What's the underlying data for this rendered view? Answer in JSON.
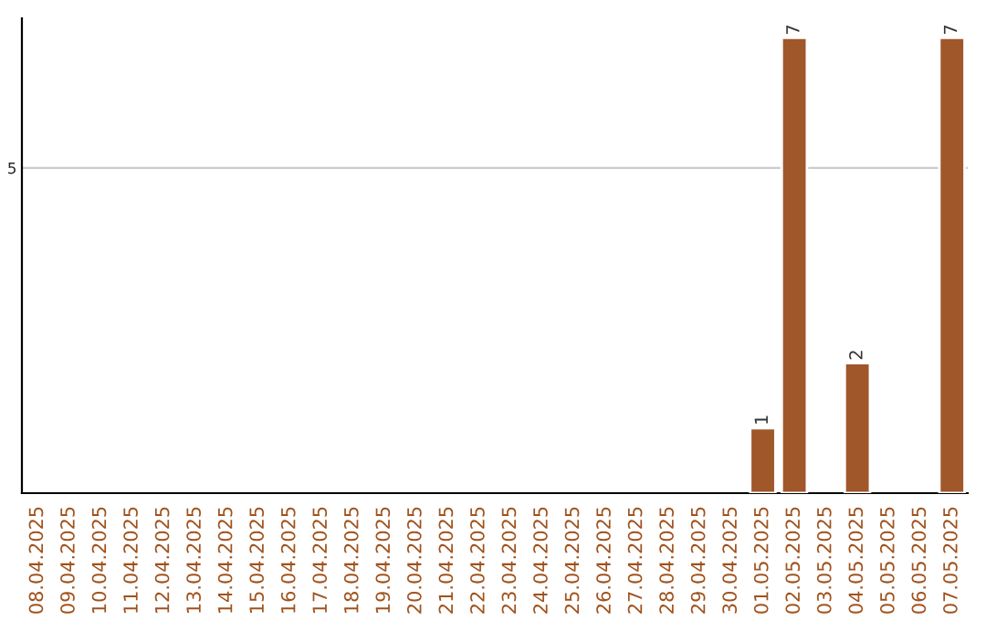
{
  "chart_data": {
    "type": "bar",
    "categories": [
      "08.04.2025",
      "09.04.2025",
      "10.04.2025",
      "11.04.2025",
      "12.04.2025",
      "13.04.2025",
      "14.04.2025",
      "15.04.2025",
      "16.04.2025",
      "17.04.2025",
      "18.04.2025",
      "19.04.2025",
      "20.04.2025",
      "21.04.2025",
      "22.04.2025",
      "23.04.2025",
      "24.04.2025",
      "25.04.2025",
      "26.04.2025",
      "27.04.2025",
      "28.04.2025",
      "29.04.2025",
      "30.04.2025",
      "01.05.2025",
      "02.05.2025",
      "03.05.2025",
      "04.05.2025",
      "05.05.2025",
      "06.05.2025",
      "07.05.2025"
    ],
    "values": [
      null,
      null,
      null,
      null,
      null,
      null,
      null,
      null,
      null,
      null,
      null,
      null,
      null,
      null,
      null,
      null,
      null,
      null,
      null,
      null,
      null,
      null,
      null,
      1,
      7,
      null,
      2,
      null,
      null,
      7
    ],
    "color": "#a0572a",
    "ylim": [
      0,
      7.3
    ],
    "yticks": [
      5
    ],
    "grid": "y",
    "data_labels": true
  }
}
